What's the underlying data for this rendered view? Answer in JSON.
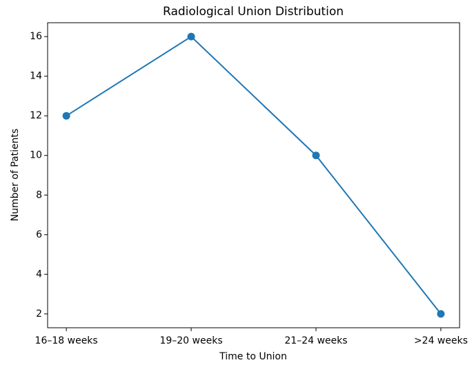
{
  "chart_data": {
    "type": "line",
    "title": "Radiological Union Distribution",
    "x_label": "Time to Union",
    "y_label": "Number of Patients",
    "categories": [
      "16–18 weeks",
      "19–20 weeks",
      "21–24 weeks",
      ">24 weeks"
    ],
    "series": [
      {
        "name": "Patients",
        "color": "#1f77b4",
        "values": [
          12,
          16,
          10,
          2
        ]
      }
    ],
    "ylim": [
      1.3,
      16.7
    ],
    "yticks": [
      2,
      4,
      6,
      8,
      10,
      12,
      14,
      16
    ],
    "grid": false
  }
}
